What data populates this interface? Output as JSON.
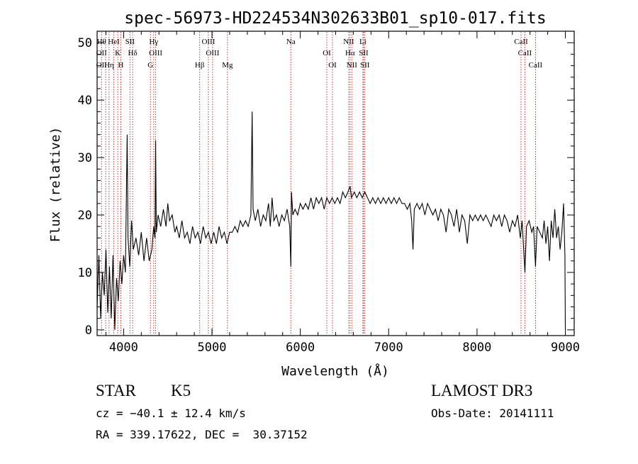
{
  "chart_data": {
    "type": "line",
    "title": "spec-56973-HD224534N302633B01_sp10-017.fits",
    "xlabel": "Wavelength (Å)",
    "ylabel": "Flux (relative)",
    "xlim": [
      3700,
      9100
    ],
    "ylim": [
      -1,
      52
    ],
    "x_ticks": [
      4000,
      5000,
      6000,
      7000,
      8000,
      9000
    ],
    "x_tick_labels": [
      "4000",
      "5000",
      "6000",
      "7000",
      "8000",
      "9000"
    ],
    "y_ticks": [
      0,
      10,
      20,
      30,
      40,
      50
    ],
    "y_tick_labels": [
      "0",
      "10",
      "20",
      "30",
      "40",
      "50"
    ],
    "grid": false,
    "line_color": "#000000",
    "marker_color": "#b02020",
    "series": [
      {
        "points": [
          [
            3700,
            4
          ],
          [
            3720,
            13
          ],
          [
            3740,
            2
          ],
          [
            3760,
            10
          ],
          [
            3780,
            6
          ],
          [
            3800,
            14
          ],
          [
            3820,
            3
          ],
          [
            3840,
            11
          ],
          [
            3860,
            2
          ],
          [
            3880,
            13
          ],
          [
            3900,
            0
          ],
          [
            3920,
            9
          ],
          [
            3940,
            5
          ],
          [
            3960,
            12
          ],
          [
            3980,
            8
          ],
          [
            4000,
            13
          ],
          [
            4020,
            10
          ],
          [
            4040,
            34
          ],
          [
            4050,
            16
          ],
          [
            4070,
            11
          ],
          [
            4090,
            19
          ],
          [
            4110,
            14
          ],
          [
            4140,
            16
          ],
          [
            4170,
            13
          ],
          [
            4200,
            17
          ],
          [
            4230,
            12
          ],
          [
            4260,
            16
          ],
          [
            4290,
            12
          ],
          [
            4320,
            14
          ],
          [
            4340,
            18
          ],
          [
            4355,
            16
          ],
          [
            4362,
            33
          ],
          [
            4370,
            17
          ],
          [
            4390,
            20
          ],
          [
            4420,
            18
          ],
          [
            4450,
            21
          ],
          [
            4480,
            18
          ],
          [
            4500,
            22
          ],
          [
            4520,
            19
          ],
          [
            4550,
            20
          ],
          [
            4580,
            17
          ],
          [
            4600,
            18
          ],
          [
            4630,
            16
          ],
          [
            4660,
            19
          ],
          [
            4690,
            16
          ],
          [
            4720,
            17
          ],
          [
            4750,
            15
          ],
          [
            4780,
            18
          ],
          [
            4810,
            16
          ],
          [
            4840,
            17
          ],
          [
            4870,
            15
          ],
          [
            4900,
            18
          ],
          [
            4930,
            16
          ],
          [
            4960,
            17
          ],
          [
            4990,
            15
          ],
          [
            5020,
            17
          ],
          [
            5050,
            15
          ],
          [
            5080,
            18
          ],
          [
            5110,
            16
          ],
          [
            5140,
            17
          ],
          [
            5170,
            15
          ],
          [
            5200,
            17
          ],
          [
            5230,
            17
          ],
          [
            5260,
            18
          ],
          [
            5290,
            17
          ],
          [
            5320,
            19
          ],
          [
            5350,
            18
          ],
          [
            5380,
            19
          ],
          [
            5410,
            18
          ],
          [
            5440,
            20
          ],
          [
            5455,
            38
          ],
          [
            5465,
            21
          ],
          [
            5490,
            19
          ],
          [
            5520,
            21
          ],
          [
            5550,
            18
          ],
          [
            5580,
            20
          ],
          [
            5610,
            19
          ],
          [
            5640,
            22
          ],
          [
            5660,
            18
          ],
          [
            5680,
            23
          ],
          [
            5700,
            19
          ],
          [
            5730,
            20
          ],
          [
            5760,
            18
          ],
          [
            5790,
            20
          ],
          [
            5820,
            19
          ],
          [
            5850,
            21
          ],
          [
            5880,
            18
          ],
          [
            5893,
            11
          ],
          [
            5900,
            24
          ],
          [
            5915,
            20
          ],
          [
            5940,
            21
          ],
          [
            5970,
            20
          ],
          [
            6000,
            22
          ],
          [
            6030,
            21
          ],
          [
            6060,
            22
          ],
          [
            6090,
            21
          ],
          [
            6120,
            23
          ],
          [
            6150,
            21
          ],
          [
            6180,
            23
          ],
          [
            6210,
            22
          ],
          [
            6240,
            23
          ],
          [
            6270,
            21
          ],
          [
            6300,
            23
          ],
          [
            6330,
            22
          ],
          [
            6360,
            23
          ],
          [
            6390,
            22
          ],
          [
            6420,
            23
          ],
          [
            6450,
            22
          ],
          [
            6480,
            24
          ],
          [
            6510,
            23
          ],
          [
            6540,
            24
          ],
          [
            6563,
            25
          ],
          [
            6580,
            23
          ],
          [
            6610,
            24
          ],
          [
            6640,
            23
          ],
          [
            6670,
            24
          ],
          [
            6700,
            23
          ],
          [
            6730,
            24
          ],
          [
            6760,
            23
          ],
          [
            6790,
            22
          ],
          [
            6820,
            23
          ],
          [
            6850,
            22
          ],
          [
            6880,
            23
          ],
          [
            6910,
            22
          ],
          [
            6940,
            23
          ],
          [
            6970,
            22
          ],
          [
            7000,
            23
          ],
          [
            7030,
            22
          ],
          [
            7060,
            23
          ],
          [
            7090,
            22
          ],
          [
            7120,
            23
          ],
          [
            7150,
            22
          ],
          [
            7180,
            22
          ],
          [
            7210,
            21
          ],
          [
            7240,
            22
          ],
          [
            7260,
            19
          ],
          [
            7275,
            14
          ],
          [
            7290,
            21
          ],
          [
            7320,
            22
          ],
          [
            7350,
            21
          ],
          [
            7380,
            22
          ],
          [
            7410,
            20
          ],
          [
            7440,
            22
          ],
          [
            7470,
            21
          ],
          [
            7500,
            20
          ],
          [
            7530,
            21
          ],
          [
            7560,
            19
          ],
          [
            7590,
            21
          ],
          [
            7620,
            20
          ],
          [
            7650,
            17
          ],
          [
            7680,
            21
          ],
          [
            7710,
            20
          ],
          [
            7740,
            18
          ],
          [
            7770,
            21
          ],
          [
            7800,
            17
          ],
          [
            7830,
            20
          ],
          [
            7860,
            19
          ],
          [
            7890,
            15
          ],
          [
            7920,
            20
          ],
          [
            7950,
            19
          ],
          [
            7980,
            20
          ],
          [
            8010,
            19
          ],
          [
            8040,
            20
          ],
          [
            8070,
            19
          ],
          [
            8100,
            20
          ],
          [
            8130,
            19
          ],
          [
            8160,
            18
          ],
          [
            8190,
            20
          ],
          [
            8220,
            19
          ],
          [
            8250,
            20
          ],
          [
            8280,
            18
          ],
          [
            8310,
            20
          ],
          [
            8340,
            19
          ],
          [
            8370,
            17
          ],
          [
            8400,
            19
          ],
          [
            8430,
            18
          ],
          [
            8460,
            20
          ],
          [
            8490,
            16
          ],
          [
            8510,
            19
          ],
          [
            8542,
            10
          ],
          [
            8560,
            18
          ],
          [
            8590,
            19
          ],
          [
            8620,
            17
          ],
          [
            8640,
            18
          ],
          [
            8662,
            11
          ],
          [
            8680,
            18
          ],
          [
            8710,
            17
          ],
          [
            8740,
            16
          ],
          [
            8760,
            19
          ],
          [
            8780,
            15
          ],
          [
            8800,
            18
          ],
          [
            8820,
            12
          ],
          [
            8840,
            19
          ],
          [
            8860,
            16
          ],
          [
            8880,
            21
          ],
          [
            8900,
            16
          ],
          [
            8920,
            18
          ],
          [
            8940,
            14
          ],
          [
            8960,
            17
          ],
          [
            8980,
            22
          ],
          [
            8995,
            13
          ],
          [
            9000,
            0
          ]
        ]
      }
    ],
    "lines": [
      {
        "x": 3750,
        "labels": [
          "Hθ",
          "OII",
          "OII"
        ]
      },
      {
        "x": 3797,
        "labels": [
          ""
        ]
      },
      {
        "x": 3835,
        "labels": [
          "Hη"
        ]
      },
      {
        "x": 3889,
        "labels": [
          "HeI"
        ]
      },
      {
        "x": 3934,
        "labels": [
          "K"
        ]
      },
      {
        "x": 3969,
        "labels": [
          "H"
        ]
      },
      {
        "x": 4072,
        "labels": [
          "SII"
        ]
      },
      {
        "x": 4102,
        "labels": [
          "Hδ"
        ]
      },
      {
        "x": 4304,
        "labels": [
          "G"
        ]
      },
      {
        "x": 4341,
        "labels": [
          "Hγ"
        ]
      },
      {
        "x": 4363,
        "labels": [
          "OIII"
        ]
      },
      {
        "x": 4861,
        "labels": [
          "Hβ"
        ]
      },
      {
        "x": 4959,
        "labels": [
          "OIII"
        ]
      },
      {
        "x": 5007,
        "labels": [
          "OIII"
        ]
      },
      {
        "x": 5175,
        "labels": [
          "Mg"
        ]
      },
      {
        "x": 5893,
        "labels": [
          "Na"
        ]
      },
      {
        "x": 6300,
        "labels": [
          "OI"
        ]
      },
      {
        "x": 6364,
        "labels": [
          "OI"
        ]
      },
      {
        "x": 6548,
        "labels": [
          "NII"
        ]
      },
      {
        "x": 6563,
        "labels": [
          "Hα"
        ]
      },
      {
        "x": 6583,
        "labels": [
          "NII"
        ]
      },
      {
        "x": 6708,
        "labels": [
          "Li"
        ]
      },
      {
        "x": 6717,
        "labels": [
          "SII"
        ]
      },
      {
        "x": 6731,
        "labels": [
          "SII"
        ]
      },
      {
        "x": 8498,
        "labels": [
          "CaII"
        ]
      },
      {
        "x": 8542,
        "labels": [
          "CaII"
        ]
      },
      {
        "x": 8662,
        "labels": [
          "CaII"
        ]
      }
    ]
  },
  "info": {
    "class": "STAR",
    "subclass": "K5",
    "survey": "LAMOST DR3",
    "cz": "cz = −40.1 ± 12.4 km/s",
    "obs_date": "Obs-Date: 20141111",
    "coords": "RA = 339.17622, DEC =  30.37152"
  }
}
